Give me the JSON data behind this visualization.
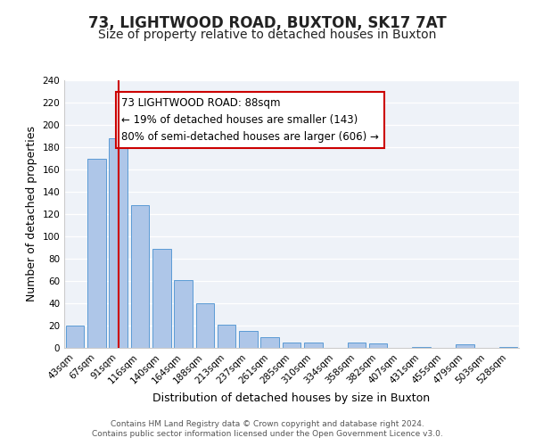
{
  "title": "73, LIGHTWOOD ROAD, BUXTON, SK17 7AT",
  "subtitle": "Size of property relative to detached houses in Buxton",
  "xlabel": "Distribution of detached houses by size in Buxton",
  "ylabel": "Number of detached properties",
  "bar_labels": [
    "43sqm",
    "67sqm",
    "91sqm",
    "116sqm",
    "140sqm",
    "164sqm",
    "188sqm",
    "213sqm",
    "237sqm",
    "261sqm",
    "285sqm",
    "310sqm",
    "334sqm",
    "358sqm",
    "382sqm",
    "407sqm",
    "431sqm",
    "455sqm",
    "479sqm",
    "503sqm",
    "528sqm"
  ],
  "bar_values": [
    20,
    170,
    188,
    128,
    89,
    61,
    40,
    21,
    15,
    10,
    5,
    5,
    0,
    5,
    4,
    0,
    1,
    0,
    3,
    0,
    1
  ],
  "bar_color": "#aec6e8",
  "bar_edge_color": "#5b9bd5",
  "vline_x": 2,
  "vline_color": "#cc0000",
  "annotation_line1": "73 LIGHTWOOD ROAD: 88sqm",
  "annotation_line2": "← 19% of detached houses are smaller (143)",
  "annotation_line3": "80% of semi-detached houses are larger (606) →",
  "annotation_box_edgecolor": "#cc0000",
  "annotation_box_facecolor": "#ffffff",
  "ylim": [
    0,
    240
  ],
  "yticks": [
    0,
    20,
    40,
    60,
    80,
    100,
    120,
    140,
    160,
    180,
    200,
    220,
    240
  ],
  "footer_line1": "Contains HM Land Registry data © Crown copyright and database right 2024.",
  "footer_line2": "Contains public sector information licensed under the Open Government Licence v3.0.",
  "title_fontsize": 12,
  "subtitle_fontsize": 10,
  "xlabel_fontsize": 9,
  "ylabel_fontsize": 9,
  "tick_fontsize": 7.5,
  "annotation_fontsize": 8.5,
  "footer_fontsize": 6.5,
  "bg_color": "#eef2f8"
}
